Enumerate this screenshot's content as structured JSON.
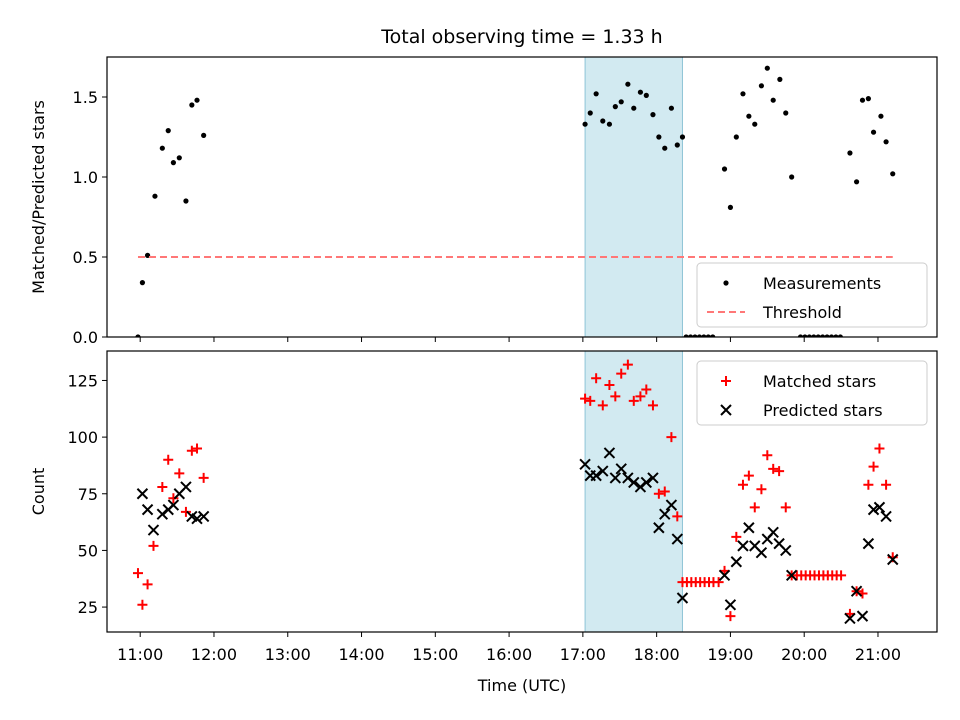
{
  "chart_data": [
    {
      "type": "scatter",
      "title": "Total observing time = 1.33 h",
      "ylabel": "Matched/Predicted stars",
      "xlabel": "",
      "xlim": [
        10.55,
        21.8
      ],
      "ylim": [
        0,
        1.75
      ],
      "yticks": [
        0.0,
        0.5,
        1.0,
        1.5
      ],
      "ytick_labels": [
        "0.0",
        "0.5",
        "1.0",
        "1.5"
      ],
      "legend_position": "lower-right",
      "highlight_span": {
        "x": [
          17.03,
          18.35
        ],
        "color": "#add8e6"
      },
      "series": [
        {
          "name": "Measurements",
          "kind": "dot",
          "color": "#000000",
          "points": [
            [
              10.97,
              0.0
            ],
            [
              11.03,
              0.34
            ],
            [
              11.1,
              0.51
            ],
            [
              11.2,
              0.88
            ],
            [
              11.3,
              1.18
            ],
            [
              11.38,
              1.29
            ],
            [
              11.45,
              1.09
            ],
            [
              11.53,
              1.12
            ],
            [
              11.62,
              0.85
            ],
            [
              11.7,
              1.45
            ],
            [
              11.77,
              1.48
            ],
            [
              11.86,
              1.26
            ],
            [
              17.03,
              1.33
            ],
            [
              17.1,
              1.4
            ],
            [
              17.18,
              1.52
            ],
            [
              17.27,
              1.35
            ],
            [
              17.36,
              1.33
            ],
            [
              17.44,
              1.44
            ],
            [
              17.52,
              1.47
            ],
            [
              17.61,
              1.58
            ],
            [
              17.69,
              1.43
            ],
            [
              17.78,
              1.53
            ],
            [
              17.86,
              1.51
            ],
            [
              17.95,
              1.39
            ],
            [
              18.03,
              1.25
            ],
            [
              18.11,
              1.18
            ],
            [
              18.2,
              1.43
            ],
            [
              18.28,
              1.2
            ],
            [
              18.35,
              1.25
            ],
            [
              18.4,
              0.0
            ],
            [
              18.46,
              0.0
            ],
            [
              18.52,
              0.0
            ],
            [
              18.58,
              0.0
            ],
            [
              18.64,
              0.0
            ],
            [
              18.7,
              0.0
            ],
            [
              18.76,
              0.0
            ],
            [
              18.92,
              1.05
            ],
            [
              19.0,
              0.81
            ],
            [
              19.08,
              1.25
            ],
            [
              19.17,
              1.52
            ],
            [
              19.25,
              1.38
            ],
            [
              19.33,
              1.33
            ],
            [
              19.42,
              1.57
            ],
            [
              19.5,
              1.68
            ],
            [
              19.58,
              1.48
            ],
            [
              19.67,
              1.61
            ],
            [
              19.75,
              1.4
            ],
            [
              19.83,
              1.0
            ],
            [
              19.95,
              0.0
            ],
            [
              20.01,
              0.0
            ],
            [
              20.07,
              0.0
            ],
            [
              20.13,
              0.0
            ],
            [
              20.19,
              0.0
            ],
            [
              20.25,
              0.0
            ],
            [
              20.31,
              0.0
            ],
            [
              20.37,
              0.0
            ],
            [
              20.43,
              0.0
            ],
            [
              20.49,
              0.0
            ],
            [
              20.62,
              1.15
            ],
            [
              20.71,
              0.97
            ],
            [
              20.79,
              1.48
            ],
            [
              20.87,
              1.49
            ],
            [
              20.94,
              1.28
            ],
            [
              21.04,
              1.38
            ],
            [
              21.11,
              1.22
            ],
            [
              21.2,
              1.02
            ]
          ]
        },
        {
          "name": "Threshold",
          "kind": "dashed-line",
          "color": "#ff7777",
          "points": [
            [
              10.97,
              0.5
            ],
            [
              21.2,
              0.5
            ]
          ]
        }
      ]
    },
    {
      "type": "scatter",
      "title": "",
      "ylabel": "Count",
      "xlabel": "Time (UTC)",
      "xlim": [
        10.55,
        21.8
      ],
      "ylim": [
        14,
        138
      ],
      "yticks": [
        25,
        50,
        75,
        100,
        125
      ],
      "ytick_labels": [
        "25",
        "50",
        "75",
        "100",
        "125"
      ],
      "xticks": [
        11,
        12,
        13,
        14,
        15,
        16,
        17,
        18,
        19,
        20,
        21
      ],
      "xtick_labels": [
        "11:00",
        "12:00",
        "13:00",
        "14:00",
        "15:00",
        "16:00",
        "17:00",
        "18:00",
        "19:00",
        "20:00",
        "21:00"
      ],
      "legend_position": "upper-right",
      "highlight_span": {
        "x": [
          17.03,
          18.35
        ],
        "color": "#add8e6"
      },
      "series": [
        {
          "name": "Matched stars",
          "kind": "plus",
          "color": "#ff0000",
          "points": [
            [
              10.97,
              40
            ],
            [
              11.03,
              26
            ],
            [
              11.1,
              35
            ],
            [
              11.18,
              52
            ],
            [
              11.3,
              78
            ],
            [
              11.38,
              90
            ],
            [
              11.45,
              73
            ],
            [
              11.53,
              84
            ],
            [
              11.62,
              67
            ],
            [
              11.7,
              94
            ],
            [
              11.77,
              95
            ],
            [
              11.86,
              82
            ],
            [
              17.03,
              117
            ],
            [
              17.1,
              116
            ],
            [
              17.18,
              126
            ],
            [
              17.27,
              114
            ],
            [
              17.36,
              123
            ],
            [
              17.44,
              118
            ],
            [
              17.52,
              128
            ],
            [
              17.61,
              132
            ],
            [
              17.69,
              116
            ],
            [
              17.78,
              118
            ],
            [
              17.86,
              121
            ],
            [
              17.95,
              114
            ],
            [
              18.03,
              75
            ],
            [
              18.11,
              76
            ],
            [
              18.2,
              100
            ],
            [
              18.28,
              65
            ],
            [
              18.35,
              36
            ],
            [
              18.41,
              36
            ],
            [
              18.47,
              36
            ],
            [
              18.53,
              36
            ],
            [
              18.59,
              36
            ],
            [
              18.65,
              36
            ],
            [
              18.71,
              36
            ],
            [
              18.77,
              36
            ],
            [
              18.84,
              36
            ],
            [
              18.92,
              41
            ],
            [
              19.0,
              21
            ],
            [
              19.08,
              56
            ],
            [
              19.17,
              79
            ],
            [
              19.25,
              83
            ],
            [
              19.33,
              69
            ],
            [
              19.42,
              77
            ],
            [
              19.5,
              92
            ],
            [
              19.58,
              86
            ],
            [
              19.66,
              85
            ],
            [
              19.75,
              69
            ],
            [
              19.83,
              39
            ],
            [
              19.9,
              39
            ],
            [
              19.96,
              39
            ],
            [
              20.02,
              39
            ],
            [
              20.08,
              39
            ],
            [
              20.14,
              39
            ],
            [
              20.2,
              39
            ],
            [
              20.26,
              39
            ],
            [
              20.32,
              39
            ],
            [
              20.38,
              39
            ],
            [
              20.44,
              39
            ],
            [
              20.5,
              39
            ],
            [
              20.62,
              22
            ],
            [
              20.71,
              32
            ],
            [
              20.79,
              31
            ],
            [
              20.87,
              79
            ],
            [
              20.94,
              87
            ],
            [
              21.02,
              95
            ],
            [
              21.11,
              79
            ],
            [
              21.2,
              47
            ]
          ]
        },
        {
          "name": "Predicted stars",
          "kind": "x",
          "color": "#000000",
          "points": [
            [
              11.03,
              75
            ],
            [
              11.1,
              68
            ],
            [
              11.18,
              59
            ],
            [
              11.3,
              66
            ],
            [
              11.38,
              68
            ],
            [
              11.45,
              70
            ],
            [
              11.53,
              75
            ],
            [
              11.62,
              78
            ],
            [
              11.7,
              65
            ],
            [
              11.77,
              64
            ],
            [
              11.86,
              65
            ],
            [
              17.03,
              88
            ],
            [
              17.1,
              83
            ],
            [
              17.18,
              83
            ],
            [
              17.27,
              85
            ],
            [
              17.36,
              93
            ],
            [
              17.44,
              82
            ],
            [
              17.52,
              86
            ],
            [
              17.61,
              82
            ],
            [
              17.69,
              80
            ],
            [
              17.78,
              78
            ],
            [
              17.86,
              80
            ],
            [
              17.95,
              82
            ],
            [
              18.03,
              60
            ],
            [
              18.11,
              66
            ],
            [
              18.2,
              70
            ],
            [
              18.28,
              55
            ],
            [
              18.35,
              29
            ],
            [
              18.92,
              39
            ],
            [
              19.0,
              26
            ],
            [
              19.08,
              45
            ],
            [
              19.17,
              52
            ],
            [
              19.25,
              60
            ],
            [
              19.33,
              52
            ],
            [
              19.42,
              49
            ],
            [
              19.5,
              55
            ],
            [
              19.58,
              58
            ],
            [
              19.66,
              53
            ],
            [
              19.75,
              50
            ],
            [
              19.83,
              39
            ],
            [
              20.62,
              20
            ],
            [
              20.71,
              32
            ],
            [
              20.79,
              21
            ],
            [
              20.87,
              53
            ],
            [
              20.94,
              68
            ],
            [
              21.02,
              69
            ],
            [
              21.11,
              65
            ],
            [
              21.2,
              46
            ]
          ]
        }
      ]
    }
  ]
}
